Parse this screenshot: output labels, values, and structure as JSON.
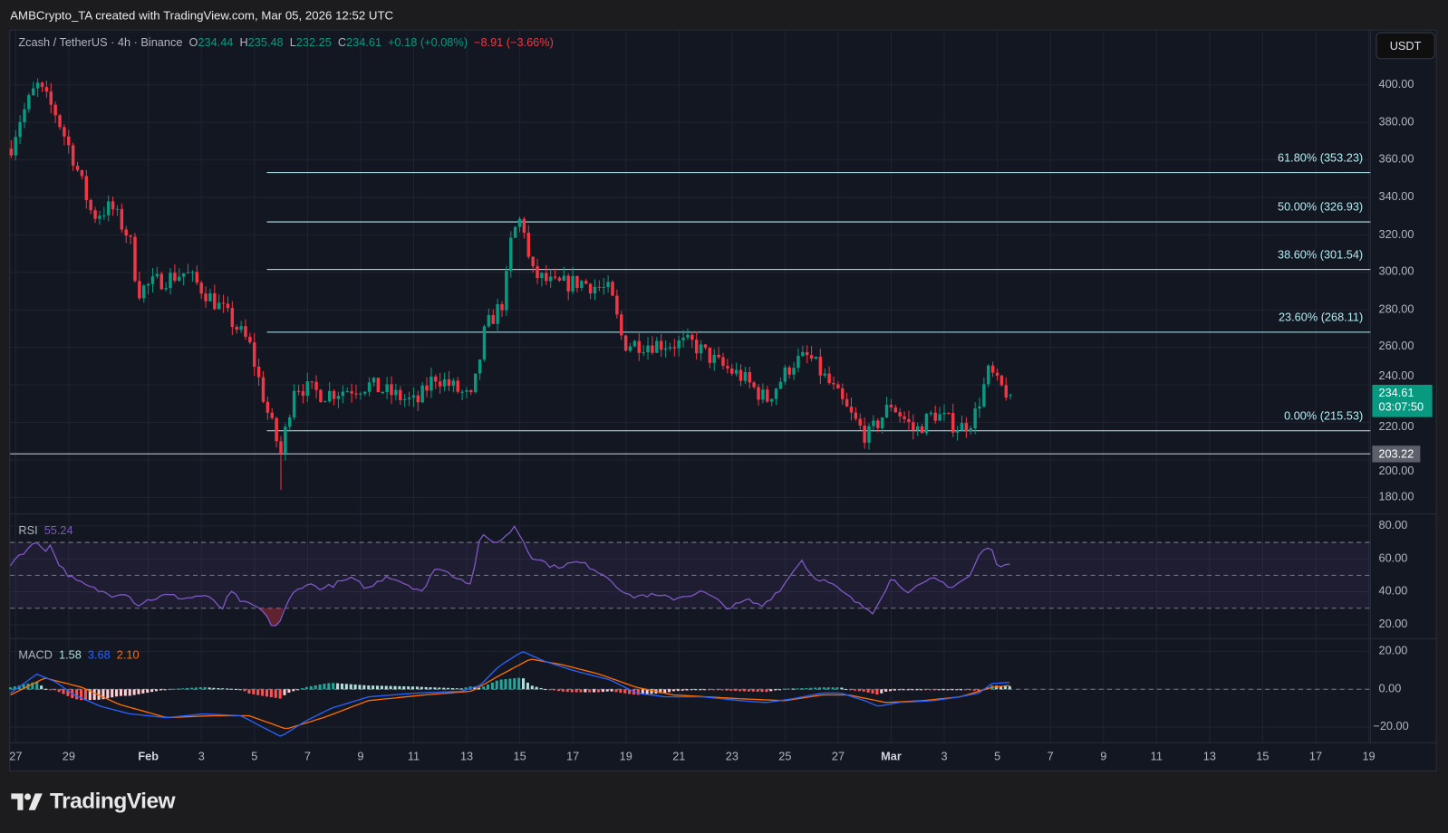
{
  "header": {
    "credit": "AMBCrypto_TA created with TradingView.com, Mar 05, 2026 12:52 UTC"
  },
  "legend": {
    "symbol": "Zcash / TetherUS · 4h · Binance",
    "open_label": "O",
    "open": "234.44",
    "high_label": "H",
    "high": "235.48",
    "low_label": "L",
    "low": "232.25",
    "close_label": "C",
    "close": "234.61",
    "change": "+0.18 (+0.08%)",
    "change2": "−8.91 (−3.66%)"
  },
  "currency_button": "USDT",
  "colors": {
    "up": "#089981",
    "down": "#f23645",
    "fib": "#b2ebf2",
    "rsi": "#7e57c2",
    "macd": "#2962ff",
    "signal": "#ff6d00",
    "bg": "#131722"
  },
  "price_axis": [
    "400.00",
    "380.00",
    "360.00",
    "340.00",
    "320.00",
    "300.00",
    "280.00",
    "260.00",
    "240.00",
    "220.00",
    "200.00",
    "180.00"
  ],
  "price_tag": {
    "price": "234.61",
    "countdown": "03:07:50"
  },
  "horizontal_line": {
    "value": 203.22,
    "label": "203.22"
  },
  "fib_levels": [
    {
      "label": "61.80% (353.23)",
      "value": 353.23
    },
    {
      "label": "50.00% (326.93)",
      "value": 326.93
    },
    {
      "label": "38.60% (301.54)",
      "value": 301.54
    },
    {
      "label": "23.60% (268.11)",
      "value": 268.11
    },
    {
      "label": "0.00% (215.53)",
      "value": 215.53
    }
  ],
  "rsi": {
    "label": "RSI",
    "value": "55.24",
    "axis": [
      "80.00",
      "60.00",
      "40.00",
      "20.00"
    ]
  },
  "macd": {
    "label": "MACD",
    "hist": "1.58",
    "macd": "3.68",
    "signal": "2.10",
    "axis": [
      "20.00",
      "0.00",
      "−20.00"
    ]
  },
  "time_axis": [
    {
      "label": "27",
      "day": 0
    },
    {
      "label": "29",
      "day": 2
    },
    {
      "label": "Feb",
      "day": 5,
      "bold": true
    },
    {
      "label": "3",
      "day": 7
    },
    {
      "label": "5",
      "day": 9
    },
    {
      "label": "7",
      "day": 11
    },
    {
      "label": "9",
      "day": 13
    },
    {
      "label": "11",
      "day": 15
    },
    {
      "label": "13",
      "day": 17
    },
    {
      "label": "15",
      "day": 19
    },
    {
      "label": "17",
      "day": 21
    },
    {
      "label": "19",
      "day": 23
    },
    {
      "label": "21",
      "day": 25
    },
    {
      "label": "23",
      "day": 27
    },
    {
      "label": "25",
      "day": 29
    },
    {
      "label": "27",
      "day": 31
    },
    {
      "label": "Mar",
      "day": 33,
      "bold": true
    },
    {
      "label": "3",
      "day": 35
    },
    {
      "label": "5",
      "day": 37
    },
    {
      "label": "7",
      "day": 39
    },
    {
      "label": "9",
      "day": 41
    },
    {
      "label": "11",
      "day": 43
    },
    {
      "label": "13",
      "day": 45
    },
    {
      "label": "15",
      "day": 47
    },
    {
      "label": "17",
      "day": 49
    },
    {
      "label": "19",
      "day": 51
    }
  ],
  "brand": "TradingView",
  "chart_data": {
    "type": "candlestick",
    "time_unit": "days since Jan 27 00:00 UTC",
    "interval_hours": 4,
    "price_range": [
      180,
      400
    ],
    "close_path": [
      [
        -0.2,
        366
      ],
      [
        0.1,
        380
      ],
      [
        0.8,
        400
      ],
      [
        1.5,
        385
      ],
      [
        2.2,
        360
      ],
      [
        2.9,
        330
      ],
      [
        3.6,
        335
      ],
      [
        4.3,
        318
      ],
      [
        4.6,
        290
      ],
      [
        5.3,
        295
      ],
      [
        6.4,
        300
      ],
      [
        7.8,
        280
      ],
      [
        8.8,
        262
      ],
      [
        9.5,
        225
      ],
      [
        10.0,
        203
      ],
      [
        10.5,
        240
      ],
      [
        11.6,
        235
      ],
      [
        13.3,
        240
      ],
      [
        15.1,
        230
      ],
      [
        15.8,
        245
      ],
      [
        17.2,
        232
      ],
      [
        17.7,
        270
      ],
      [
        18.4,
        285
      ],
      [
        18.7,
        320
      ],
      [
        19.1,
        330
      ],
      [
        19.4,
        300
      ],
      [
        20.3,
        293
      ],
      [
        21.3,
        295
      ],
      [
        22.4,
        290
      ],
      [
        22.9,
        262
      ],
      [
        24.5,
        262
      ],
      [
        25.5,
        262
      ],
      [
        26.6,
        250
      ],
      [
        27.3,
        245
      ],
      [
        28.3,
        232
      ],
      [
        29.3,
        252
      ],
      [
        29.9,
        255
      ],
      [
        30.7,
        240
      ],
      [
        31.4,
        225
      ],
      [
        32.1,
        212
      ],
      [
        33.0,
        230
      ],
      [
        33.9,
        215
      ],
      [
        34.6,
        225
      ],
      [
        35.6,
        217
      ],
      [
        36.1,
        222
      ],
      [
        36.7,
        248
      ],
      [
        37.0,
        240
      ],
      [
        37.5,
        234.61
      ]
    ],
    "rsi_path": [
      [
        -0.2,
        57
      ],
      [
        0.1,
        62
      ],
      [
        0.8,
        70
      ],
      [
        1.2,
        65
      ],
      [
        1.3,
        68
      ],
      [
        1.7,
        55
      ],
      [
        2.2,
        47
      ],
      [
        2.9,
        42
      ],
      [
        3.6,
        38
      ],
      [
        4.1,
        40
      ],
      [
        4.6,
        32
      ],
      [
        5.0,
        35
      ],
      [
        5.7,
        38
      ],
      [
        6.4,
        36
      ],
      [
        7.1,
        38
      ],
      [
        7.8,
        30
      ],
      [
        8.1,
        40
      ],
      [
        8.6,
        33
      ],
      [
        9.2,
        30
      ],
      [
        9.7,
        19
      ],
      [
        9.9,
        20
      ],
      [
        10.4,
        38
      ],
      [
        10.9,
        45
      ],
      [
        11.6,
        42
      ],
      [
        12.6,
        48
      ],
      [
        13.3,
        42
      ],
      [
        14.0,
        50
      ],
      [
        14.7,
        45
      ],
      [
        15.4,
        40
      ],
      [
        15.8,
        55
      ],
      [
        16.5,
        50
      ],
      [
        17.2,
        45
      ],
      [
        17.5,
        75
      ],
      [
        17.9,
        70
      ],
      [
        18.4,
        72
      ],
      [
        18.8,
        80
      ],
      [
        19.1,
        72
      ],
      [
        19.4,
        62
      ],
      [
        20.3,
        55
      ],
      [
        21.2,
        58
      ],
      [
        21.7,
        55
      ],
      [
        22.4,
        48
      ],
      [
        23.1,
        37
      ],
      [
        23.8,
        38
      ],
      [
        24.8,
        36
      ],
      [
        25.9,
        40
      ],
      [
        26.9,
        30
      ],
      [
        27.6,
        35
      ],
      [
        28.1,
        31
      ],
      [
        28.7,
        40
      ],
      [
        29.0,
        45
      ],
      [
        29.6,
        60
      ],
      [
        30.0,
        50
      ],
      [
        30.7,
        45
      ],
      [
        31.3,
        38
      ],
      [
        31.8,
        32
      ],
      [
        32.3,
        28
      ],
      [
        33.0,
        48
      ],
      [
        33.7,
        40
      ],
      [
        34.6,
        48
      ],
      [
        35.3,
        43
      ],
      [
        36.0,
        50
      ],
      [
        36.3,
        62
      ],
      [
        36.7,
        68
      ],
      [
        37.0,
        57
      ],
      [
        37.5,
        55.24
      ]
    ],
    "macd_path": [
      [
        -0.2,
        -2
      ],
      [
        0.8,
        8
      ],
      [
        1.5,
        4
      ],
      [
        2.2,
        -3
      ],
      [
        3.2,
        -9
      ],
      [
        4.3,
        -13
      ],
      [
        5.7,
        -15
      ],
      [
        7.1,
        -13
      ],
      [
        8.5,
        -14
      ],
      [
        9.3,
        -20
      ],
      [
        10.0,
        -25
      ],
      [
        10.9,
        -17
      ],
      [
        11.9,
        -10
      ],
      [
        13.3,
        -4
      ],
      [
        15.1,
        -2
      ],
      [
        16.8,
        -1
      ],
      [
        17.5,
        2
      ],
      [
        18.2,
        12
      ],
      [
        19.1,
        20
      ],
      [
        19.9,
        15
      ],
      [
        21.0,
        10
      ],
      [
        22.4,
        5
      ],
      [
        23.4,
        -2
      ],
      [
        24.5,
        -4
      ],
      [
        25.9,
        -4
      ],
      [
        27.3,
        -6
      ],
      [
        28.3,
        -7
      ],
      [
        29.3,
        -5
      ],
      [
        30.4,
        -2
      ],
      [
        31.1,
        -2
      ],
      [
        32.0,
        -6
      ],
      [
        32.5,
        -9
      ],
      [
        33.3,
        -7
      ],
      [
        34.6,
        -6
      ],
      [
        35.6,
        -4
      ],
      [
        36.3,
        -2
      ],
      [
        36.8,
        3
      ],
      [
        37.5,
        3.68
      ]
    ],
    "signal_path": [
      [
        -0.2,
        -3
      ],
      [
        1.1,
        6
      ],
      [
        2.5,
        1
      ],
      [
        3.9,
        -8
      ],
      [
        5.7,
        -15
      ],
      [
        7.4,
        -14
      ],
      [
        8.8,
        -14
      ],
      [
        10.2,
        -21
      ],
      [
        11.6,
        -15
      ],
      [
        13.3,
        -6
      ],
      [
        15.4,
        -3
      ],
      [
        17.2,
        -1
      ],
      [
        18.2,
        7
      ],
      [
        19.4,
        16
      ],
      [
        20.6,
        13
      ],
      [
        22.0,
        8
      ],
      [
        23.4,
        1
      ],
      [
        24.8,
        -3
      ],
      [
        27.3,
        -5
      ],
      [
        29.0,
        -6
      ],
      [
        30.4,
        -3
      ],
      [
        31.4,
        -3
      ],
      [
        32.8,
        -7
      ],
      [
        34.2,
        -6
      ],
      [
        35.6,
        -4
      ],
      [
        36.8,
        1
      ],
      [
        37.5,
        2.1
      ]
    ],
    "rsi_bands": [
      30,
      50,
      70
    ],
    "macd_range": [
      -20,
      20
    ]
  }
}
